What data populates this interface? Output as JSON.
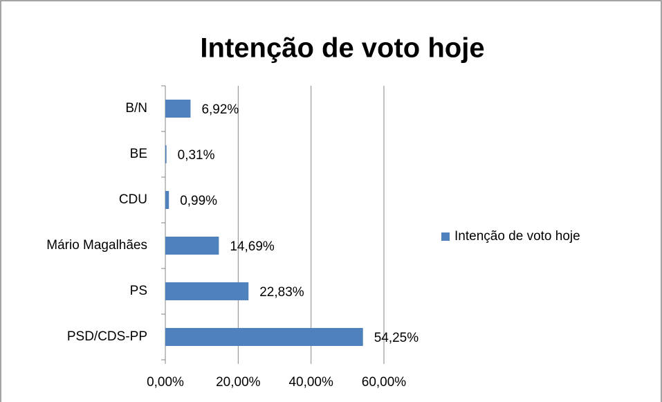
{
  "chart_data": {
    "type": "bar",
    "orientation": "horizontal",
    "title": "Intenção de voto hoje",
    "categories": [
      "B/N",
      "BE",
      "CDU",
      "Mário Magalhães",
      "PS",
      "PSD/CDS-PP"
    ],
    "series": [
      {
        "name": "Intenção de voto hoje",
        "color": "#4f81bd",
        "values": [
          6.92,
          0.31,
          0.99,
          14.69,
          22.83,
          54.25
        ],
        "value_labels": [
          "6,92%",
          "0,31%",
          "0,99%",
          "14,69%",
          "22,83%",
          "54,25%"
        ]
      }
    ],
    "xlim": [
      0,
      60
    ],
    "xticks": [
      {
        "value": 0,
        "label": "0,00%"
      },
      {
        "value": 20,
        "label": "20,00%"
      },
      {
        "value": 40,
        "label": "40,00%"
      },
      {
        "value": 60,
        "label": "60,00%"
      }
    ],
    "grid": true,
    "legend": "right"
  }
}
